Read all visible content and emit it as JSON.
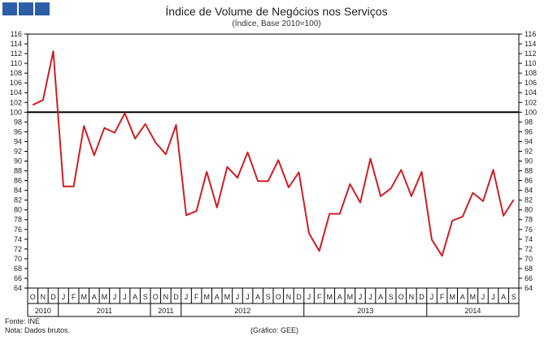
{
  "logo": {
    "name": "gee-logo"
  },
  "chart_data": {
    "type": "line",
    "title": "Índice de Volume de Negócios nos Serviços",
    "subtitle": "(Índice, Base 2010=100)",
    "ylim": [
      64,
      116
    ],
    "yticks": [
      64,
      66,
      68,
      70,
      72,
      74,
      76,
      78,
      80,
      82,
      84,
      86,
      88,
      90,
      92,
      94,
      96,
      98,
      100,
      102,
      104,
      106,
      108,
      110,
      112,
      114,
      116
    ],
    "categories": [
      "O",
      "N",
      "D",
      "J",
      "F",
      "M",
      "A",
      "M",
      "J",
      "J",
      "A",
      "S",
      "O",
      "N",
      "D",
      "J",
      "F",
      "M",
      "A",
      "M",
      "J",
      "J",
      "A",
      "S",
      "O",
      "N",
      "D",
      "J",
      "F",
      "M",
      "A",
      "M",
      "J",
      "J",
      "A",
      "S",
      "O",
      "N",
      "D",
      "J",
      "F",
      "M",
      "A",
      "M",
      "J",
      "J",
      "A",
      "S"
    ],
    "year_groups": [
      {
        "label": "2010",
        "count": 3
      },
      {
        "label": "2011",
        "count": 9
      },
      {
        "label": "2011",
        "count": 3
      },
      {
        "label": "2012",
        "count": 12
      },
      {
        "label": "2013",
        "count": 12
      },
      {
        "label": "2014",
        "count": 9
      }
    ],
    "series": [
      {
        "name": "Índice de Volume de Negócios nos Serviços",
        "color": "#cc1f24",
        "values": [
          101.5,
          102.5,
          112.5,
          84.8,
          84.8,
          97.2,
          91.2,
          96.8,
          95.8,
          99.8,
          94.6,
          97.6,
          93.8,
          91.4,
          97.4,
          78.9,
          79.8,
          87.8,
          80.5,
          88.8,
          86.6,
          91.8,
          85.9,
          85.9,
          90.2,
          84.6,
          87.7,
          75.2,
          71.6,
          79.2,
          79.2,
          85.3,
          81.5,
          90.5,
          82.8,
          84.4,
          88.2,
          82.8,
          87.8,
          73.9,
          70.6,
          77.8,
          78.6,
          83.5,
          81.8,
          88.2,
          78.8,
          82.1
        ]
      }
    ],
    "reference_line": {
      "value": 100,
      "color": "#000000"
    }
  },
  "footer": {
    "source": "Fonte: INE",
    "note": "Nota: Dados brutos.",
    "credit": "(Gráfico: GEE)"
  }
}
